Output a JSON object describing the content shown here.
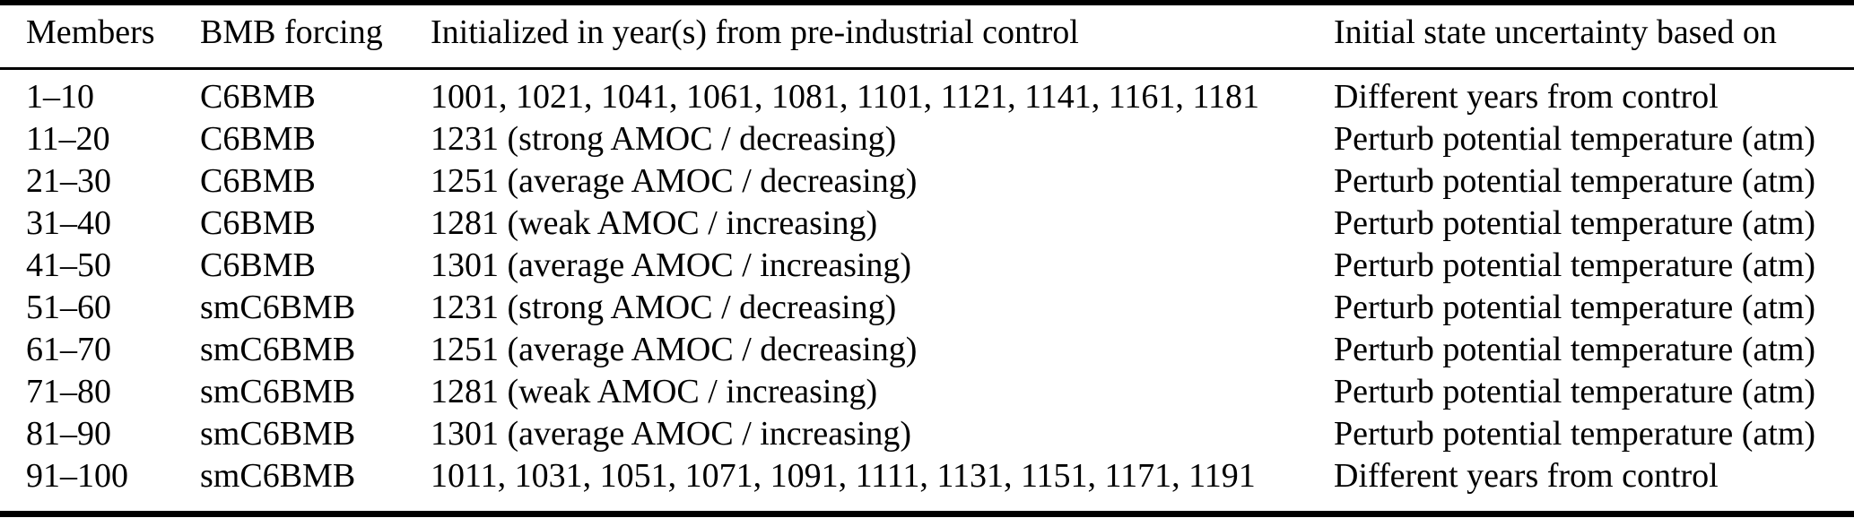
{
  "colors": {
    "text": "#000000",
    "background": "#ffffff",
    "rule": "#000000"
  },
  "table": {
    "columns": {
      "members": "Members",
      "bmb_forcing": "BMB forcing",
      "initialized": "Initialized in year(s) from pre-industrial control",
      "uncertainty": "Initial state uncertainty based on"
    },
    "rows": [
      {
        "members": "1–10",
        "bmb": "C6BMB",
        "init": "1001, 1021, 1041, 1061, 1081, 1101, 1121, 1141, 1161, 1181",
        "uncertainty": "Different years from control"
      },
      {
        "members": "11–20",
        "bmb": "C6BMB",
        "init": "1231 (strong AMOC / decreasing)",
        "uncertainty": "Perturb potential temperature (atm)"
      },
      {
        "members": "21–30",
        "bmb": "C6BMB",
        "init": "1251 (average AMOC / decreasing)",
        "uncertainty": "Perturb potential temperature (atm)"
      },
      {
        "members": "31–40",
        "bmb": "C6BMB",
        "init": "1281 (weak AMOC / increasing)",
        "uncertainty": "Perturb potential temperature (atm)"
      },
      {
        "members": "41–50",
        "bmb": "C6BMB",
        "init": "1301 (average AMOC / increasing)",
        "uncertainty": "Perturb potential temperature (atm)"
      },
      {
        "members": "51–60",
        "bmb": "smC6BMB",
        "init": "1231 (strong AMOC / decreasing)",
        "uncertainty": "Perturb potential temperature (atm)"
      },
      {
        "members": "61–70",
        "bmb": "smC6BMB",
        "init": "1251 (average AMOC / decreasing)",
        "uncertainty": "Perturb potential temperature (atm)"
      },
      {
        "members": "71–80",
        "bmb": "smC6BMB",
        "init": "1281 (weak AMOC / increasing)",
        "uncertainty": "Perturb potential temperature (atm)"
      },
      {
        "members": "81–90",
        "bmb": "smC6BMB",
        "init": "1301 (average AMOC / increasing)",
        "uncertainty": "Perturb potential temperature (atm)"
      },
      {
        "members": "91–100",
        "bmb": "smC6BMB",
        "init": "1011, 1031, 1051, 1071, 1091, 1111, 1131, 1151, 1171, 1191",
        "uncertainty": "Different years from control"
      }
    ]
  }
}
